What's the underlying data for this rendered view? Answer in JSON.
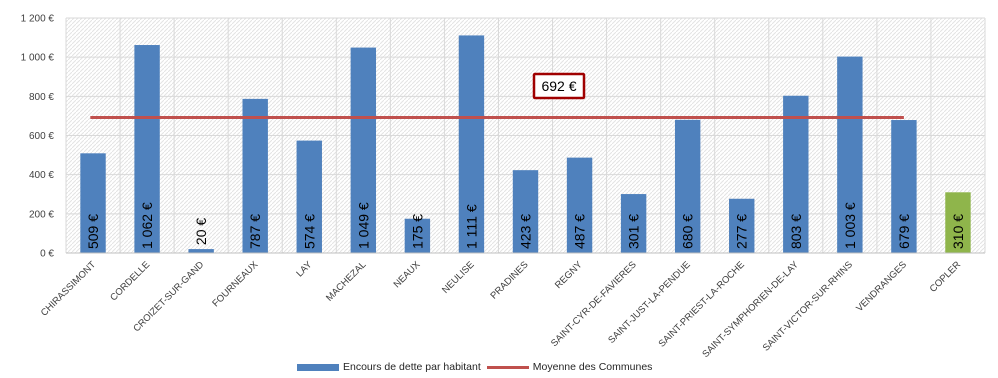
{
  "chart_data": {
    "type": "bar",
    "title": "",
    "xlabel": "",
    "ylabel": "",
    "ylim": [
      0,
      1200
    ],
    "yticks": [
      0,
      200,
      400,
      600,
      800,
      1000,
      1200
    ],
    "ytick_labels": [
      "0 €",
      "200 €",
      "400 €",
      "600 €",
      "800 €",
      "1 000 €",
      "1 200 €"
    ],
    "grid": "vertical hatched bands",
    "legend_position": "bottom",
    "categories": [
      "CHIRASSIMONT",
      "CORDELLE",
      "CROIZET-SUR-GAND",
      "FOURNEAUX",
      "LAY",
      "MACHEZAL",
      "NEAUX",
      "NEULISE",
      "PRADINES",
      "REGNY",
      "SAINT-CYR-DE-FAVIERES",
      "SAINT-JUST-LA-PENDUE",
      "SAINT-PRIEST-LA-ROCHE",
      "SAINT-SYMPHORIEN-DE-LAY",
      "SAINT-VICTOR-SUR-RHINS",
      "VENDRANGES",
      "COPLER"
    ],
    "series": [
      {
        "name": "Encours de dette par habitant",
        "type": "bar",
        "color": "#4f81bd",
        "highlight_color": "#8fb54b",
        "highlight_index": 16,
        "values": [
          509,
          1062,
          20,
          787,
          574,
          1049,
          175,
          1111,
          423,
          487,
          301,
          680,
          277,
          803,
          1003,
          679,
          310
        ],
        "labels": [
          "509 €",
          "1 062 €",
          "20 €",
          "787 €",
          "574 €",
          "1 049 €",
          "175 €",
          "1 111 €",
          "423 €",
          "487 €",
          "301 €",
          "680 €",
          "277 €",
          "803 €",
          "1 003 €",
          "679 €",
          "310 €"
        ]
      },
      {
        "name": "Moyenne des Communes",
        "type": "line",
        "color": "#c0504d",
        "value": 692,
        "label": "692 €"
      }
    ]
  }
}
